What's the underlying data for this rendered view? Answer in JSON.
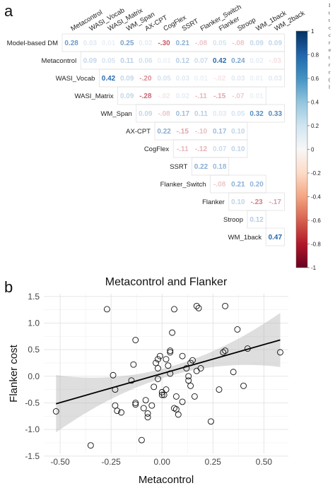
{
  "panels": {
    "a": "a",
    "b": "b"
  },
  "side_text": [
    "I",
    "t",
    "t",
    "c",
    "c",
    "r",
    "e",
    "t",
    "r",
    "r",
    "(",
    "l"
  ],
  "chart_data": [
    {
      "type": "heatmap",
      "variables": [
        "Model-based DM",
        "Metacontrol",
        "WASI_Vocab",
        "WASI_Matrix",
        "WM_Span",
        "AX-CPT",
        "CogFlex",
        "SSRT",
        "Flanker_Switch",
        "Flanker",
        "Stroop",
        "WM_1back",
        "WM_2back"
      ],
      "matrix": [
        [
          0.28,
          0.03,
          0.01,
          0.25,
          0.02,
          -0.3,
          0.21,
          -0.08,
          0.05,
          -0.08,
          0.09,
          0.09
        ],
        [
          0.09,
          0.05,
          0.11,
          0.06,
          0.01,
          0.12,
          0.07,
          0.42,
          0.24,
          0.02,
          -0.03
        ],
        [
          0.42,
          0.09,
          -0.2,
          0.05,
          0.03,
          0.01,
          -0.02,
          0.03,
          0.01,
          0.03
        ],
        [
          0.09,
          -0.28,
          -0.02,
          0.02,
          -0.11,
          -0.15,
          -0.07,
          0.01
        ],
        [
          0.09,
          -0.08,
          0.17,
          0.11,
          0.03,
          0.05,
          0.32,
          0.33
        ],
        [
          0.22,
          -0.15,
          -0.1,
          0.17,
          0.1
        ],
        [
          -0.11,
          -0.12,
          0.07,
          0.1
        ],
        [
          0.22,
          0.18
        ],
        [
          -0.08,
          0.21,
          0.2
        ],
        [
          0.1,
          -0.23,
          -0.17
        ],
        [
          0.12
        ],
        [
          0.47
        ]
      ],
      "colorbar": {
        "min": -1,
        "max": 1,
        "ticks": [
          "1",
          "0.8",
          "0.6",
          "0.4",
          "0.2",
          "0",
          "-0.2",
          "-0.4",
          "-0.6",
          "-0.8",
          "-1"
        ]
      },
      "colors": {
        "positive": "#2166ac",
        "negative": "#b2182b",
        "neutral": "#ffffff"
      }
    },
    {
      "type": "scatter",
      "title": "Metacontrol and Flanker",
      "xlabel": "Metacontrol",
      "ylabel": "Flanker cost",
      "xlim": [
        -0.58,
        0.62
      ],
      "ylim": [
        -1.45,
        1.55
      ],
      "xticks": [
        "-0.50",
        "-0.25",
        "0.00",
        "0.25",
        "0.50"
      ],
      "yticks": [
        "1.5",
        "1.0",
        "0.5",
        "0.0",
        "-0.5",
        "-1.0",
        "-1.5"
      ],
      "grid": true,
      "regression": {
        "intercept": 0.05,
        "slope": 1.09,
        "ci": "shaded"
      },
      "points": [
        [
          -0.52,
          -0.66
        ],
        [
          -0.35,
          -1.3
        ],
        [
          -0.27,
          1.26
        ],
        [
          -0.24,
          0.02
        ],
        [
          -0.23,
          -0.55
        ],
        [
          -0.22,
          -0.65
        ],
        [
          -0.23,
          -0.25
        ],
        [
          -0.2,
          -0.68
        ],
        [
          -0.15,
          -0.08
        ],
        [
          -0.14,
          0.22
        ],
        [
          -0.13,
          -0.5
        ],
        [
          -0.13,
          -0.53
        ],
        [
          -0.13,
          0.68
        ],
        [
          -0.1,
          -1.2
        ],
        [
          -0.09,
          -0.6
        ],
        [
          -0.08,
          -0.45
        ],
        [
          -0.07,
          -0.7
        ],
        [
          -0.07,
          -0.77
        ],
        [
          -0.05,
          -0.55
        ],
        [
          -0.04,
          -0.2
        ],
        [
          -0.03,
          0.25
        ],
        [
          -0.02,
          0.15
        ],
        [
          -0.02,
          -0.05
        ],
        [
          -0.02,
          0.32
        ],
        [
          -0.01,
          0.38
        ],
        [
          0.0,
          -0.3
        ],
        [
          0.0,
          -0.35
        ],
        [
          0.01,
          -0.35
        ],
        [
          0.02,
          -0.25
        ],
        [
          0.02,
          0.32
        ],
        [
          0.03,
          0.2
        ],
        [
          0.04,
          0.05
        ],
        [
          0.04,
          0.45
        ],
        [
          0.04,
          0.48
        ],
        [
          0.05,
          0.82
        ],
        [
          0.06,
          1.26
        ],
        [
          0.06,
          -0.6
        ],
        [
          0.07,
          -0.38
        ],
        [
          0.07,
          -0.62
        ],
        [
          0.08,
          -0.72
        ],
        [
          0.1,
          0.38
        ],
        [
          0.1,
          -0.48
        ],
        [
          0.12,
          0.15
        ],
        [
          0.13,
          0.0
        ],
        [
          0.13,
          -0.08
        ],
        [
          0.14,
          -0.18
        ],
        [
          0.14,
          0.25
        ],
        [
          0.15,
          0.3
        ],
        [
          0.16,
          -0.38
        ],
        [
          0.17,
          0.1
        ],
        [
          0.17,
          1.32
        ],
        [
          0.18,
          1.28
        ],
        [
          0.19,
          0.15
        ],
        [
          0.24,
          -0.85
        ],
        [
          0.28,
          -0.25
        ],
        [
          0.3,
          0.45
        ],
        [
          0.31,
          0.48
        ],
        [
          0.31,
          1.32
        ],
        [
          0.35,
          0.08
        ],
        [
          0.37,
          0.88
        ],
        [
          0.4,
          -0.18
        ],
        [
          0.42,
          0.52
        ],
        [
          0.58,
          0.45
        ]
      ]
    }
  ]
}
